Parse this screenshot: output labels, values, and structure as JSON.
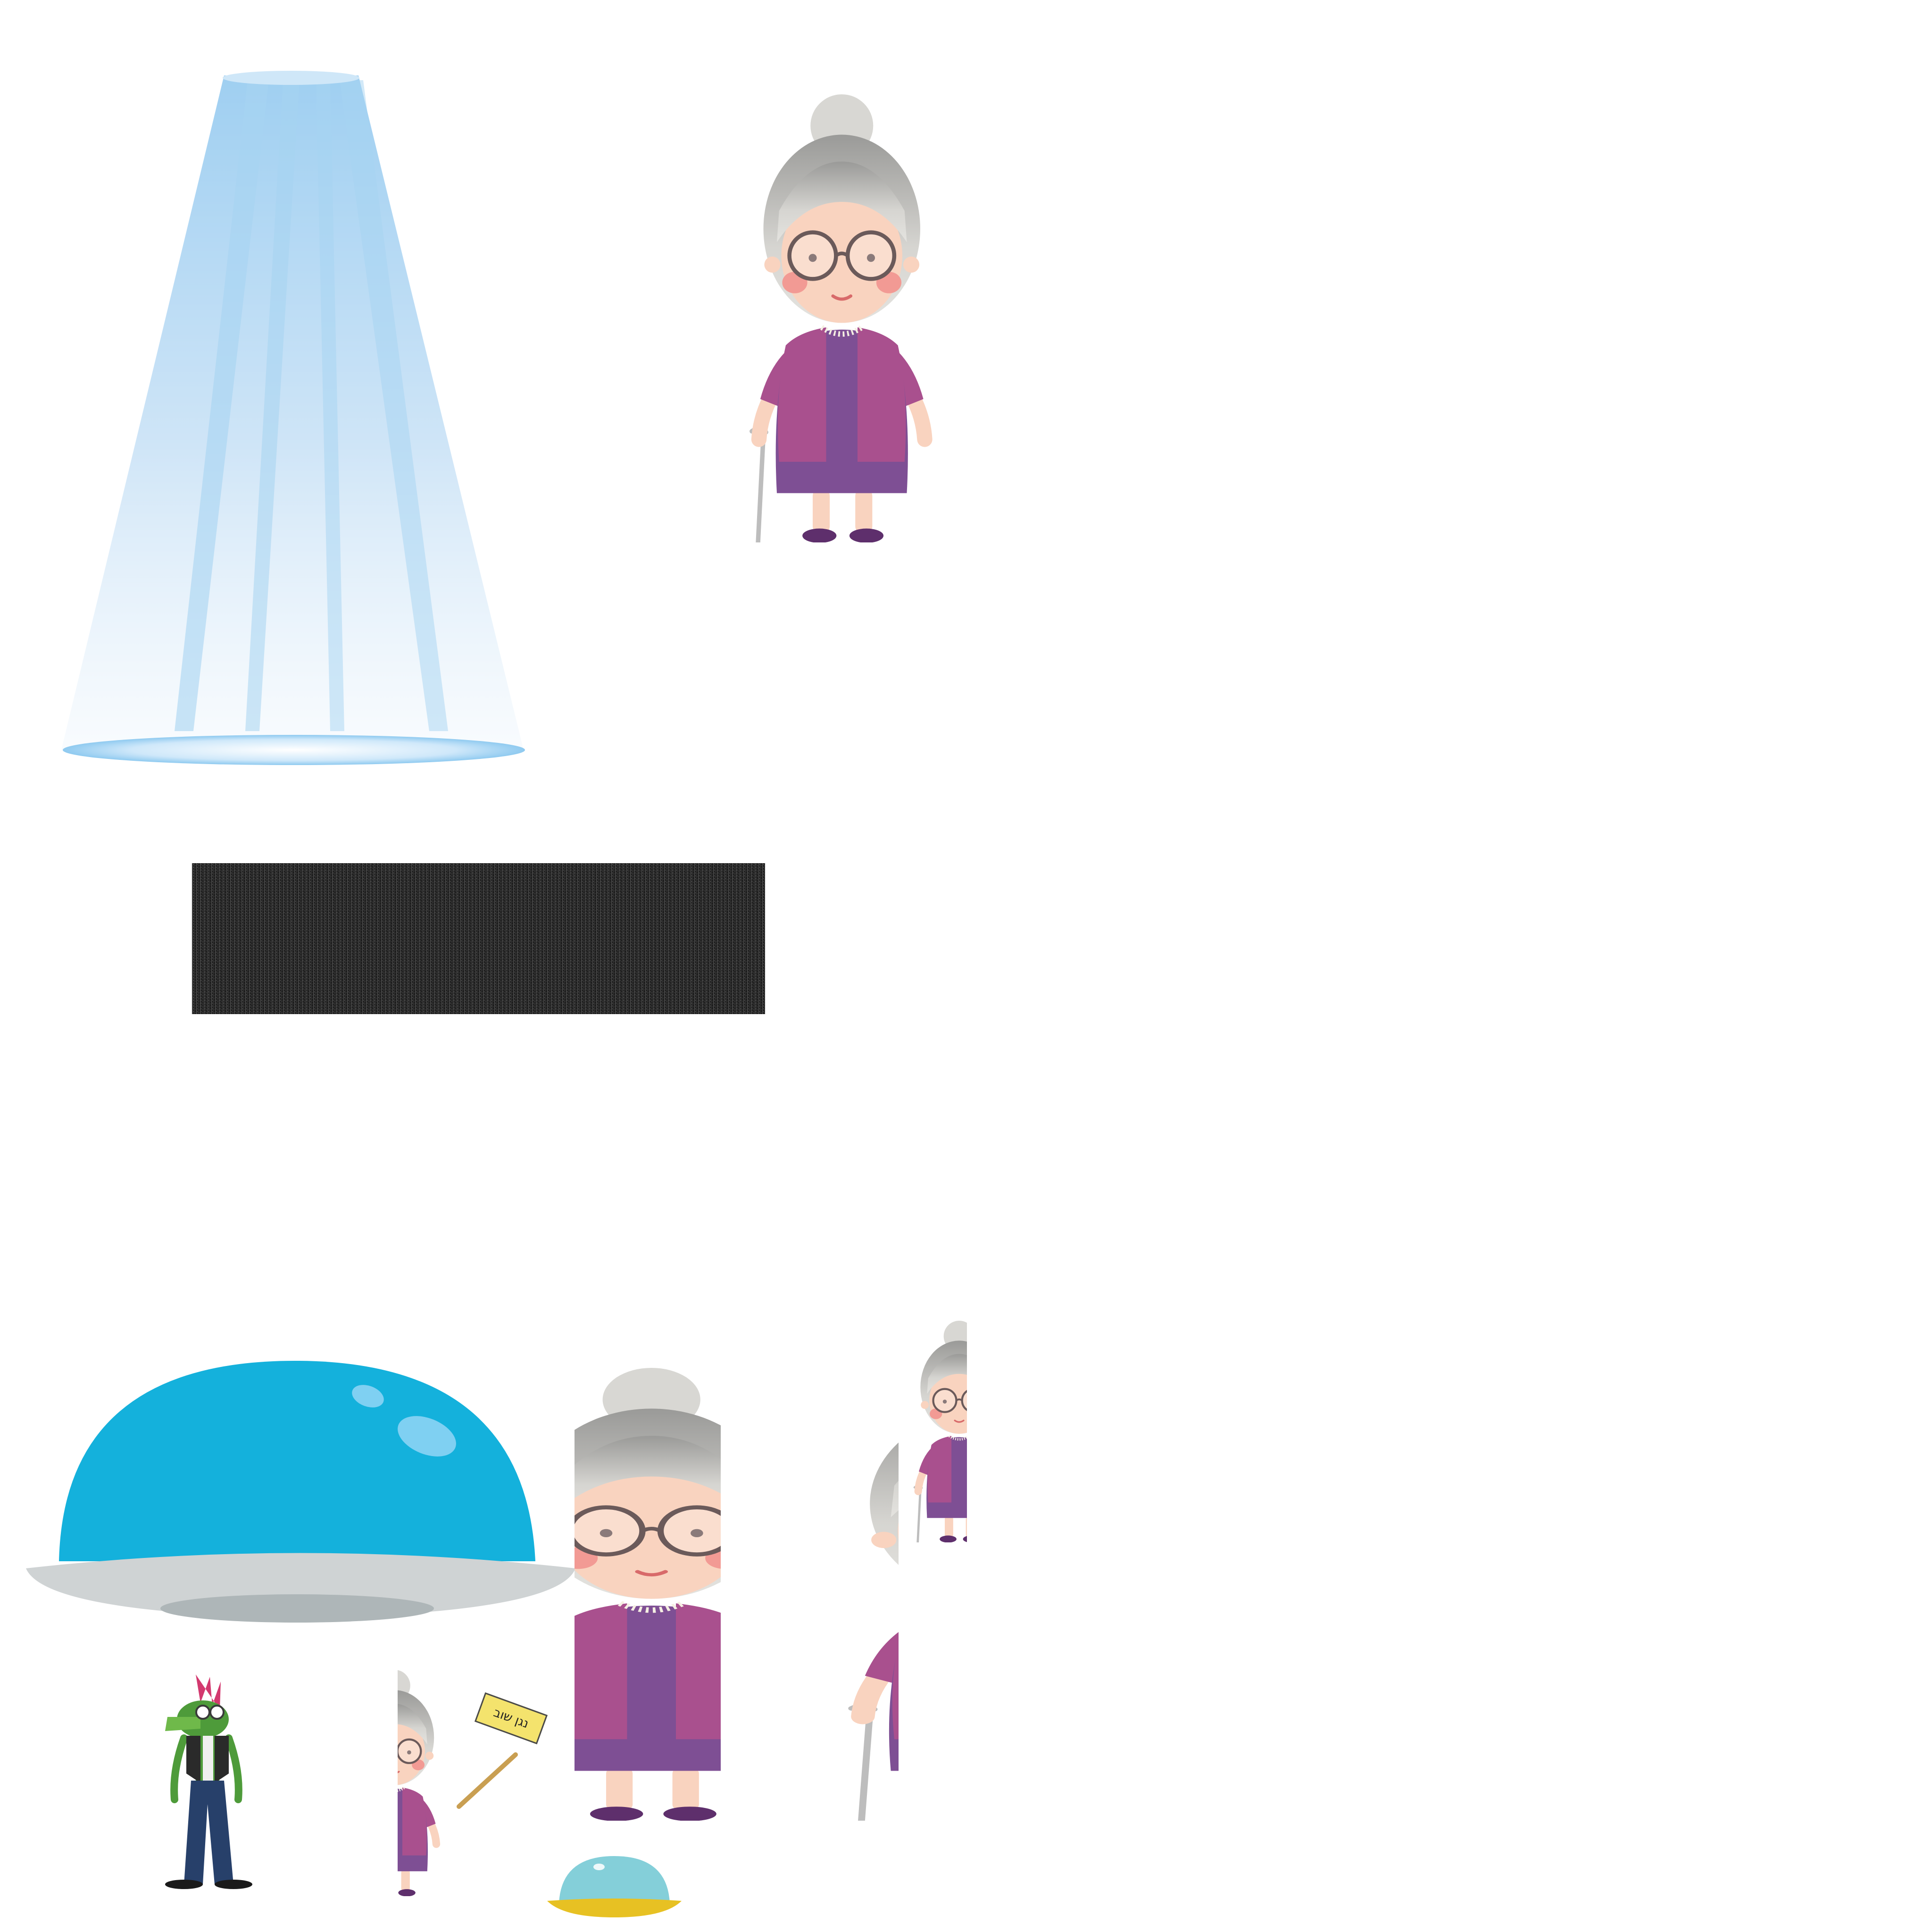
{
  "sheet": {
    "background": "#ffffff",
    "sprites": [
      {
        "name": "light-beam",
        "kind": "image"
      },
      {
        "name": "grandma-full",
        "kind": "character"
      },
      {
        "name": "dark-fabric-texture",
        "kind": "texture"
      },
      {
        "name": "ufo-saucer",
        "kind": "vehicle"
      },
      {
        "name": "crocodile-punk",
        "kind": "character"
      },
      {
        "name": "grandma-holding-sign",
        "kind": "character"
      },
      {
        "name": "grandma-left-half",
        "kind": "character-slice"
      },
      {
        "name": "grandma-right-half",
        "kind": "character-slice"
      },
      {
        "name": "grandma-small-slice",
        "kind": "character-slice"
      },
      {
        "name": "small-ufo-dome",
        "kind": "vehicle"
      }
    ]
  },
  "sign": {
    "text": "נגן שוב"
  },
  "colors": {
    "beam": "#a9d4f2",
    "ufo_dome": "#14b1dc",
    "ufo_highlight": "#7fd0f2",
    "ufo_disc": "#cfd3d4",
    "ufo_shadow": "#aeb6b8",
    "grandma_hair": "#d0cfcb",
    "grandma_skin": "#f9d3bf",
    "grandma_cardigan": "#a9508e",
    "grandma_dress": "#7e4f94",
    "grandma_shoes": "#5e2f6c",
    "cheek": "#f29a94",
    "glasses": "#6b5a5a",
    "cane": "#bdbdbd",
    "texture": "#1e1e1e",
    "croc_green": "#4e9b3a",
    "croc_pants": "#27406a",
    "croc_mohawk": "#d3396f",
    "sign_yellow": "#f4e36d",
    "small_ufo_dome": "#84cfd9",
    "small_ufo_base": "#e7c123"
  }
}
